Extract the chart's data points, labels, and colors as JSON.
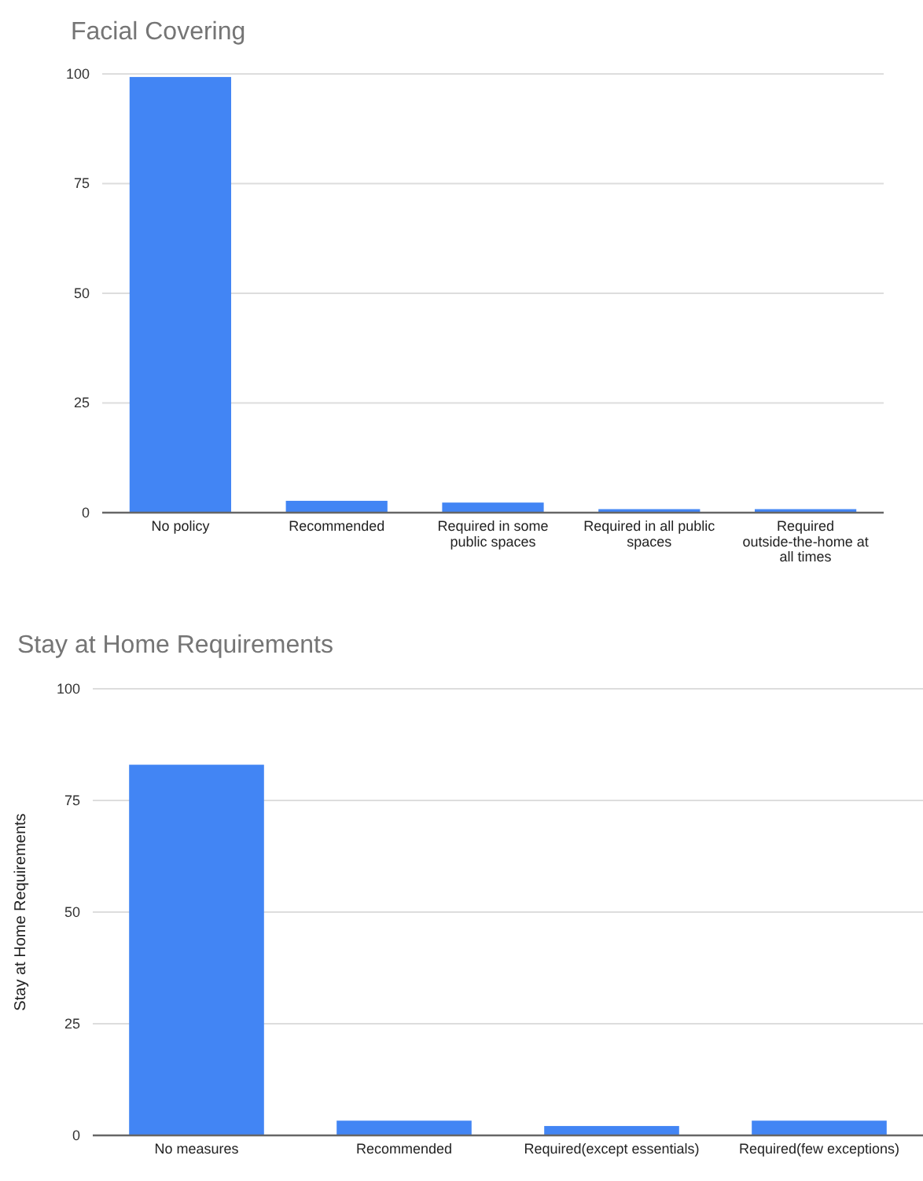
{
  "chart_data": [
    {
      "type": "bar",
      "title": "Facial Covering",
      "categories": [
        "No policy",
        "Recommended",
        "Required in some public spaces",
        "Required in all public spaces",
        "Required outside-the-home at all times"
      ],
      "values": [
        99.3,
        2.7,
        2.3,
        0.8,
        0.8
      ],
      "color": "#4285f4",
      "ylim": [
        0,
        100
      ],
      "yticks": [
        0,
        25,
        50,
        75,
        100
      ],
      "grid": "y"
    },
    {
      "type": "bar",
      "title": "Stay at Home Requirements",
      "ylabel": "Stay at Home Requirements",
      "categories": [
        "No measures",
        "Recommended",
        "Required(except essentials)",
        "Required(few exceptions)"
      ],
      "values": [
        83,
        3.3,
        2.1,
        3.3
      ],
      "color": "#4285f4",
      "ylim": [
        0,
        100
      ],
      "yticks": [
        0,
        25,
        50,
        75,
        100
      ],
      "grid": "y"
    }
  ]
}
